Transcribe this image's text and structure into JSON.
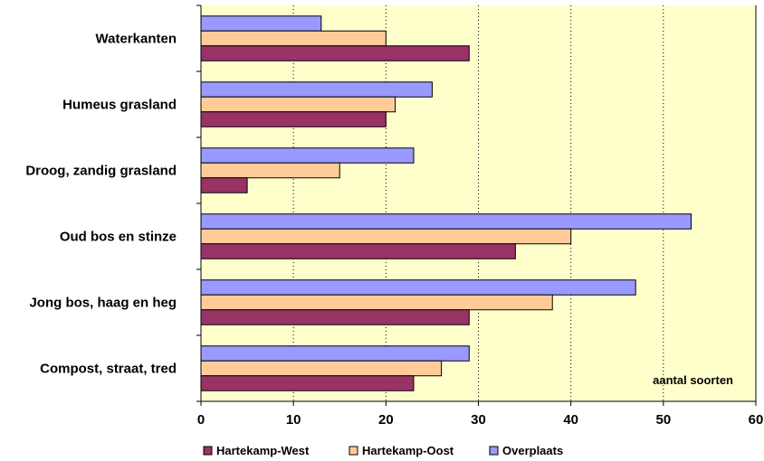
{
  "chart_data": {
    "type": "bar",
    "orientation": "horizontal",
    "categories": [
      "Waterkanten",
      "Humeus grasland",
      "Droog, zandig grasland",
      "Oud bos en stinze",
      "Jong bos, haag en heg",
      "Compost, straat, tred"
    ],
    "series": [
      {
        "name": "Hartekamp-West",
        "color": "#993366",
        "values": [
          29,
          20,
          5,
          34,
          29,
          23
        ]
      },
      {
        "name": "Hartekamp-Oost",
        "color": "#ffcc99",
        "values": [
          20,
          21,
          15,
          40,
          38,
          26
        ]
      },
      {
        "name": "Overplaats",
        "color": "#9999ff",
        "values": [
          13,
          25,
          23,
          53,
          47,
          29
        ]
      }
    ],
    "xlim": [
      0,
      60
    ],
    "xticks": [
      0,
      10,
      20,
      30,
      40,
      50,
      60
    ],
    "annotation": "aantal soorten",
    "grid": "vertical dotted",
    "plot_background": "#ffffcc",
    "legend_position": "bottom"
  }
}
